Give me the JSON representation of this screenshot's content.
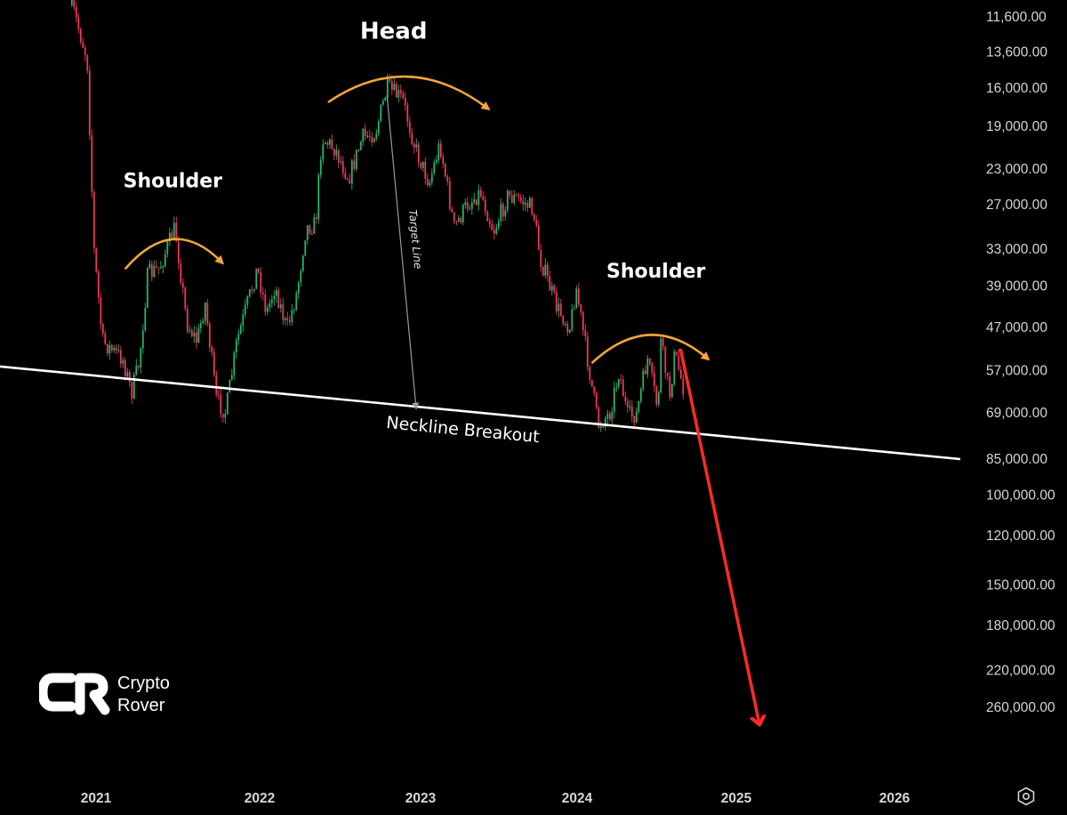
{
  "chart_data": {
    "type": "candlestick",
    "y_scale": "log",
    "y_inverted": true,
    "y_ticks": [
      "11,600.00",
      "13,600.00",
      "16,000.00",
      "19,000.00",
      "23,000.00",
      "27,000.00",
      "33,000.00",
      "39,000.00",
      "47,000.00",
      "57,000.00",
      "69,000.00",
      "85,000.00",
      "100,000.00",
      "120,000.00",
      "150,000.00",
      "180,000.00",
      "220,000.00",
      "260,000.00"
    ],
    "y_tick_values": [
      11600,
      13600,
      16000,
      19000,
      23000,
      27000,
      33000,
      39000,
      47000,
      57000,
      69000,
      85000,
      100000,
      120000,
      150000,
      180000,
      220000,
      260000
    ],
    "x_ticks": [
      "2021",
      "2022",
      "2023",
      "2024",
      "2025",
      "2026"
    ],
    "price_path": [
      [
        "2020-12-01",
        11000
      ],
      [
        "2021-01-05",
        14000
      ],
      [
        "2021-01-20",
        33000
      ],
      [
        "2021-02-08",
        50000
      ],
      [
        "2021-03-01",
        52000
      ],
      [
        "2021-03-25",
        54000
      ],
      [
        "2021-04-14",
        63000
      ],
      [
        "2021-05-01",
        55000
      ],
      [
        "2021-05-20",
        37000
      ],
      [
        "2021-06-15",
        36000
      ],
      [
        "2021-07-01",
        33000
      ],
      [
        "2021-07-20",
        30000
      ],
      [
        "2021-08-15",
        46000
      ],
      [
        "2021-09-07",
        50000
      ],
      [
        "2021-09-25",
        42000
      ],
      [
        "2021-10-20",
        65000
      ],
      [
        "2021-11-10",
        69000
      ],
      [
        "2021-12-05",
        50000
      ],
      [
        "2022-01-20",
        36000
      ],
      [
        "2022-02-10",
        44000
      ],
      [
        "2022-03-01",
        39000
      ],
      [
        "2022-03-28",
        47500
      ],
      [
        "2022-04-20",
        40000
      ],
      [
        "2022-05-10",
        30000
      ],
      [
        "2022-06-01",
        29500
      ],
      [
        "2022-06-15",
        20000
      ],
      [
        "2022-07-15",
        21000
      ],
      [
        "2022-08-15",
        24000
      ],
      [
        "2022-09-15",
        20000
      ],
      [
        "2022-10-15",
        19500
      ],
      [
        "2022-11-10",
        16000
      ],
      [
        "2022-12-15",
        16800
      ],
      [
        "2023-01-14",
        21000
      ],
      [
        "2023-02-15",
        24500
      ],
      [
        "2023-03-12",
        20500
      ],
      [
        "2023-04-14",
        30000
      ],
      [
        "2023-05-15",
        27000
      ],
      [
        "2023-06-15",
        25500
      ],
      [
        "2023-07-15",
        30500
      ],
      [
        "2023-08-17",
        26000
      ],
      [
        "2023-09-15",
        26500
      ],
      [
        "2023-10-15",
        27500
      ],
      [
        "2023-11-01",
        34500
      ],
      [
        "2023-12-10",
        43000
      ],
      [
        "2024-01-10",
        47000
      ],
      [
        "2024-01-23",
        39000
      ],
      [
        "2024-02-15",
        52000
      ],
      [
        "2024-03-14",
        73000
      ],
      [
        "2024-04-10",
        69000
      ],
      [
        "2024-05-01",
        57000
      ],
      [
        "2024-05-20",
        70000
      ],
      [
        "2024-06-10",
        69500
      ],
      [
        "2024-07-05",
        54000
      ],
      [
        "2024-07-29",
        68000
      ],
      [
        "2024-08-05",
        50000
      ],
      [
        "2024-08-25",
        64000
      ],
      [
        "2024-09-06",
        53000
      ],
      [
        "2024-09-30",
        63500
      ]
    ],
    "neckline": {
      "label": "Neckline Breakout",
      "from": [
        "2020-12-01",
        56000
      ],
      "to": [
        "2026-08-01",
        85000
      ]
    },
    "target_line": {
      "label": "Target Line",
      "from": [
        "2022-11-10",
        16500
      ],
      "to": [
        "2023-01-15",
        67000
      ]
    },
    "projection": {
      "from": [
        "2024-09-20",
        52000
      ],
      "to": [
        "2025-03-20",
        280000
      ],
      "color": "#ff2a2a"
    },
    "annotations": [
      {
        "text": "Shoulder",
        "arc_from": [
          "2021-04-01",
          36000
        ],
        "arc_to": [
          "2021-11-01",
          35000
        ],
        "text_at": [
          "2021-07-15",
          25000
        ]
      },
      {
        "text": "Head",
        "arc_from": [
          "2022-07-01",
          17000
        ],
        "arc_to": [
          "2023-07-01",
          17500
        ],
        "text_at": [
          "2022-11-25",
          12800
        ]
      },
      {
        "text": "Shoulder",
        "arc_from": [
          "2024-03-01",
          55000
        ],
        "arc_to": [
          "2024-11-20",
          54000
        ],
        "text_at": [
          "2024-07-25",
          37500
        ]
      }
    ],
    "colors": {
      "up": "#2ab36a",
      "down": "#f0375a",
      "neckline": "#ffffff",
      "arc": "#f5a53a",
      "target_line": "#9a9a9a",
      "axis_text": "#d6d6d6",
      "background": "#000000"
    }
  },
  "brand": {
    "name_line1": "Crypto",
    "name_line2": "Rover",
    "logo_icon": "cr-logo-icon"
  },
  "controls": {
    "settings_icon": "settings-hexagon-icon"
  }
}
